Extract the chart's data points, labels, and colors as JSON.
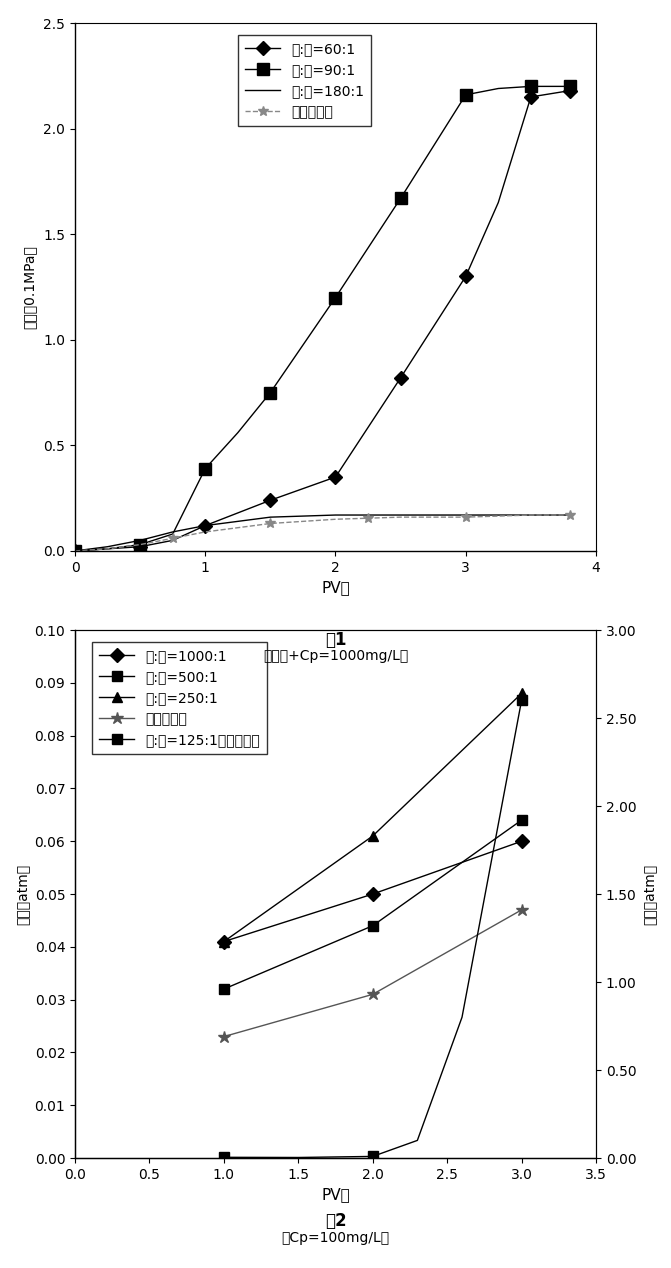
{
  "fig1": {
    "title": "图1",
    "subtitle": "（污水+Cp=1000mg/L）",
    "xlabel": "PV数",
    "ylabel": "压力（0.1MPa）",
    "ylim": [
      0.0,
      2.5
    ],
    "xlim": [
      0,
      4
    ],
    "yticks": [
      0.0,
      0.5,
      1.0,
      1.5,
      2.0,
      2.5
    ],
    "xticks": [
      0,
      1,
      2,
      3,
      4
    ],
    "series": [
      {
        "label": "聚:铬=60:1",
        "x": [
          0,
          0.25,
          0.5,
          0.75,
          1.0,
          1.25,
          1.5,
          2.0,
          2.5,
          3.0,
          3.25,
          3.5,
          3.8
        ],
        "y": [
          0.0,
          0.01,
          0.02,
          0.05,
          0.12,
          0.18,
          0.24,
          0.35,
          0.82,
          1.3,
          1.65,
          2.15,
          2.18
        ],
        "color": "#000000",
        "marker": "D",
        "marker_at": [
          0,
          0.5,
          1.0,
          1.5,
          2.0,
          2.5,
          3.0,
          3.5,
          3.8
        ],
        "markersize": 7,
        "linestyle": "-"
      },
      {
        "label": "聚:铬=90:1",
        "x": [
          0,
          0.25,
          0.5,
          0.75,
          1.0,
          1.25,
          1.5,
          2.0,
          2.5,
          3.0,
          3.25,
          3.5,
          3.8
        ],
        "y": [
          0.0,
          0.01,
          0.03,
          0.08,
          0.39,
          0.56,
          0.75,
          1.2,
          1.67,
          2.16,
          2.19,
          2.2,
          2.2
        ],
        "color": "#000000",
        "marker": "s",
        "marker_at": [
          0,
          0.5,
          1.0,
          1.5,
          2.0,
          2.5,
          3.0,
          3.5,
          3.8
        ],
        "markersize": 8,
        "linestyle": "-"
      },
      {
        "label": "聚:铬=180:1",
        "x": [
          0,
          0.25,
          0.5,
          0.75,
          1.0,
          1.5,
          2.0,
          2.5,
          3.0,
          3.5,
          3.8
        ],
        "y": [
          0.0,
          0.02,
          0.05,
          0.09,
          0.12,
          0.16,
          0.17,
          0.17,
          0.17,
          0.17,
          0.17
        ],
        "color": "#000000",
        "marker": "",
        "marker_at": [],
        "markersize": 0,
        "linestyle": "-"
      },
      {
        "label": "聚合物溶液",
        "x": [
          0,
          0.25,
          0.5,
          0.75,
          1.0,
          1.5,
          2.0,
          2.5,
          3.0,
          3.5,
          3.8
        ],
        "y": [
          0.0,
          0.01,
          0.03,
          0.06,
          0.09,
          0.13,
          0.15,
          0.16,
          0.16,
          0.17,
          0.17
        ],
        "color": "#888888",
        "marker": "*",
        "marker_at": [
          0.75,
          1.5,
          2.25,
          3.0,
          3.8
        ],
        "markersize": 7,
        "linestyle": "--"
      }
    ]
  },
  "fig2": {
    "title": "图2",
    "subtitle": "（Cp=100mg/L）",
    "xlabel": "PV数",
    "ylabel_left": "压力（atm）",
    "ylabel_right": "压力（atm）",
    "ylim_left": [
      0.0,
      0.1
    ],
    "ylim_right": [
      0.0,
      3.0
    ],
    "xlim": [
      0,
      3.5
    ],
    "yticks_left": [
      0.0,
      0.01,
      0.02,
      0.03,
      0.04,
      0.05,
      0.06,
      0.07,
      0.08,
      0.09,
      0.1
    ],
    "yticks_right": [
      0.0,
      0.5,
      1.0,
      1.5,
      2.0,
      2.5,
      3.0
    ],
    "xticks": [
      0,
      0.5,
      1.0,
      1.5,
      2.0,
      2.5,
      3.0,
      3.5
    ],
    "series_left": [
      {
        "label": "聚:铬=1000:1",
        "x": [
          1.0,
          2.0,
          3.0
        ],
        "y": [
          0.041,
          0.05,
          0.06
        ],
        "color": "#000000",
        "marker": "D",
        "markersize": 7,
        "linestyle": "-"
      },
      {
        "label": "聚:铬=500:1",
        "x": [
          1.0,
          2.0,
          3.0
        ],
        "y": [
          0.032,
          0.044,
          0.064
        ],
        "color": "#000000",
        "marker": "s",
        "markersize": 7,
        "linestyle": "-"
      },
      {
        "label": "聚:铬=250:1",
        "x": [
          1.0,
          2.0,
          3.0
        ],
        "y": [
          0.041,
          0.061,
          0.088
        ],
        "color": "#000000",
        "marker": "^",
        "markersize": 7,
        "linestyle": "-"
      },
      {
        "label": "聚合物溶液",
        "x": [
          1.0,
          2.0,
          3.0
        ],
        "y": [
          0.023,
          0.031,
          0.047
        ],
        "color": "#555555",
        "marker": "*",
        "markersize": 9,
        "linestyle": "-"
      }
    ],
    "series_right": [
      {
        "label": "聚:铬=125:1（次坐标）",
        "x": [
          1.0,
          1.5,
          2.0,
          2.3,
          2.6,
          3.0
        ],
        "y": [
          0.004,
          0.003,
          0.009,
          0.1,
          0.8,
          2.6
        ],
        "color": "#000000",
        "marker": "s",
        "markersize": 7,
        "linestyle": "-",
        "markevery": [
          0,
          2,
          5
        ]
      }
    ]
  }
}
